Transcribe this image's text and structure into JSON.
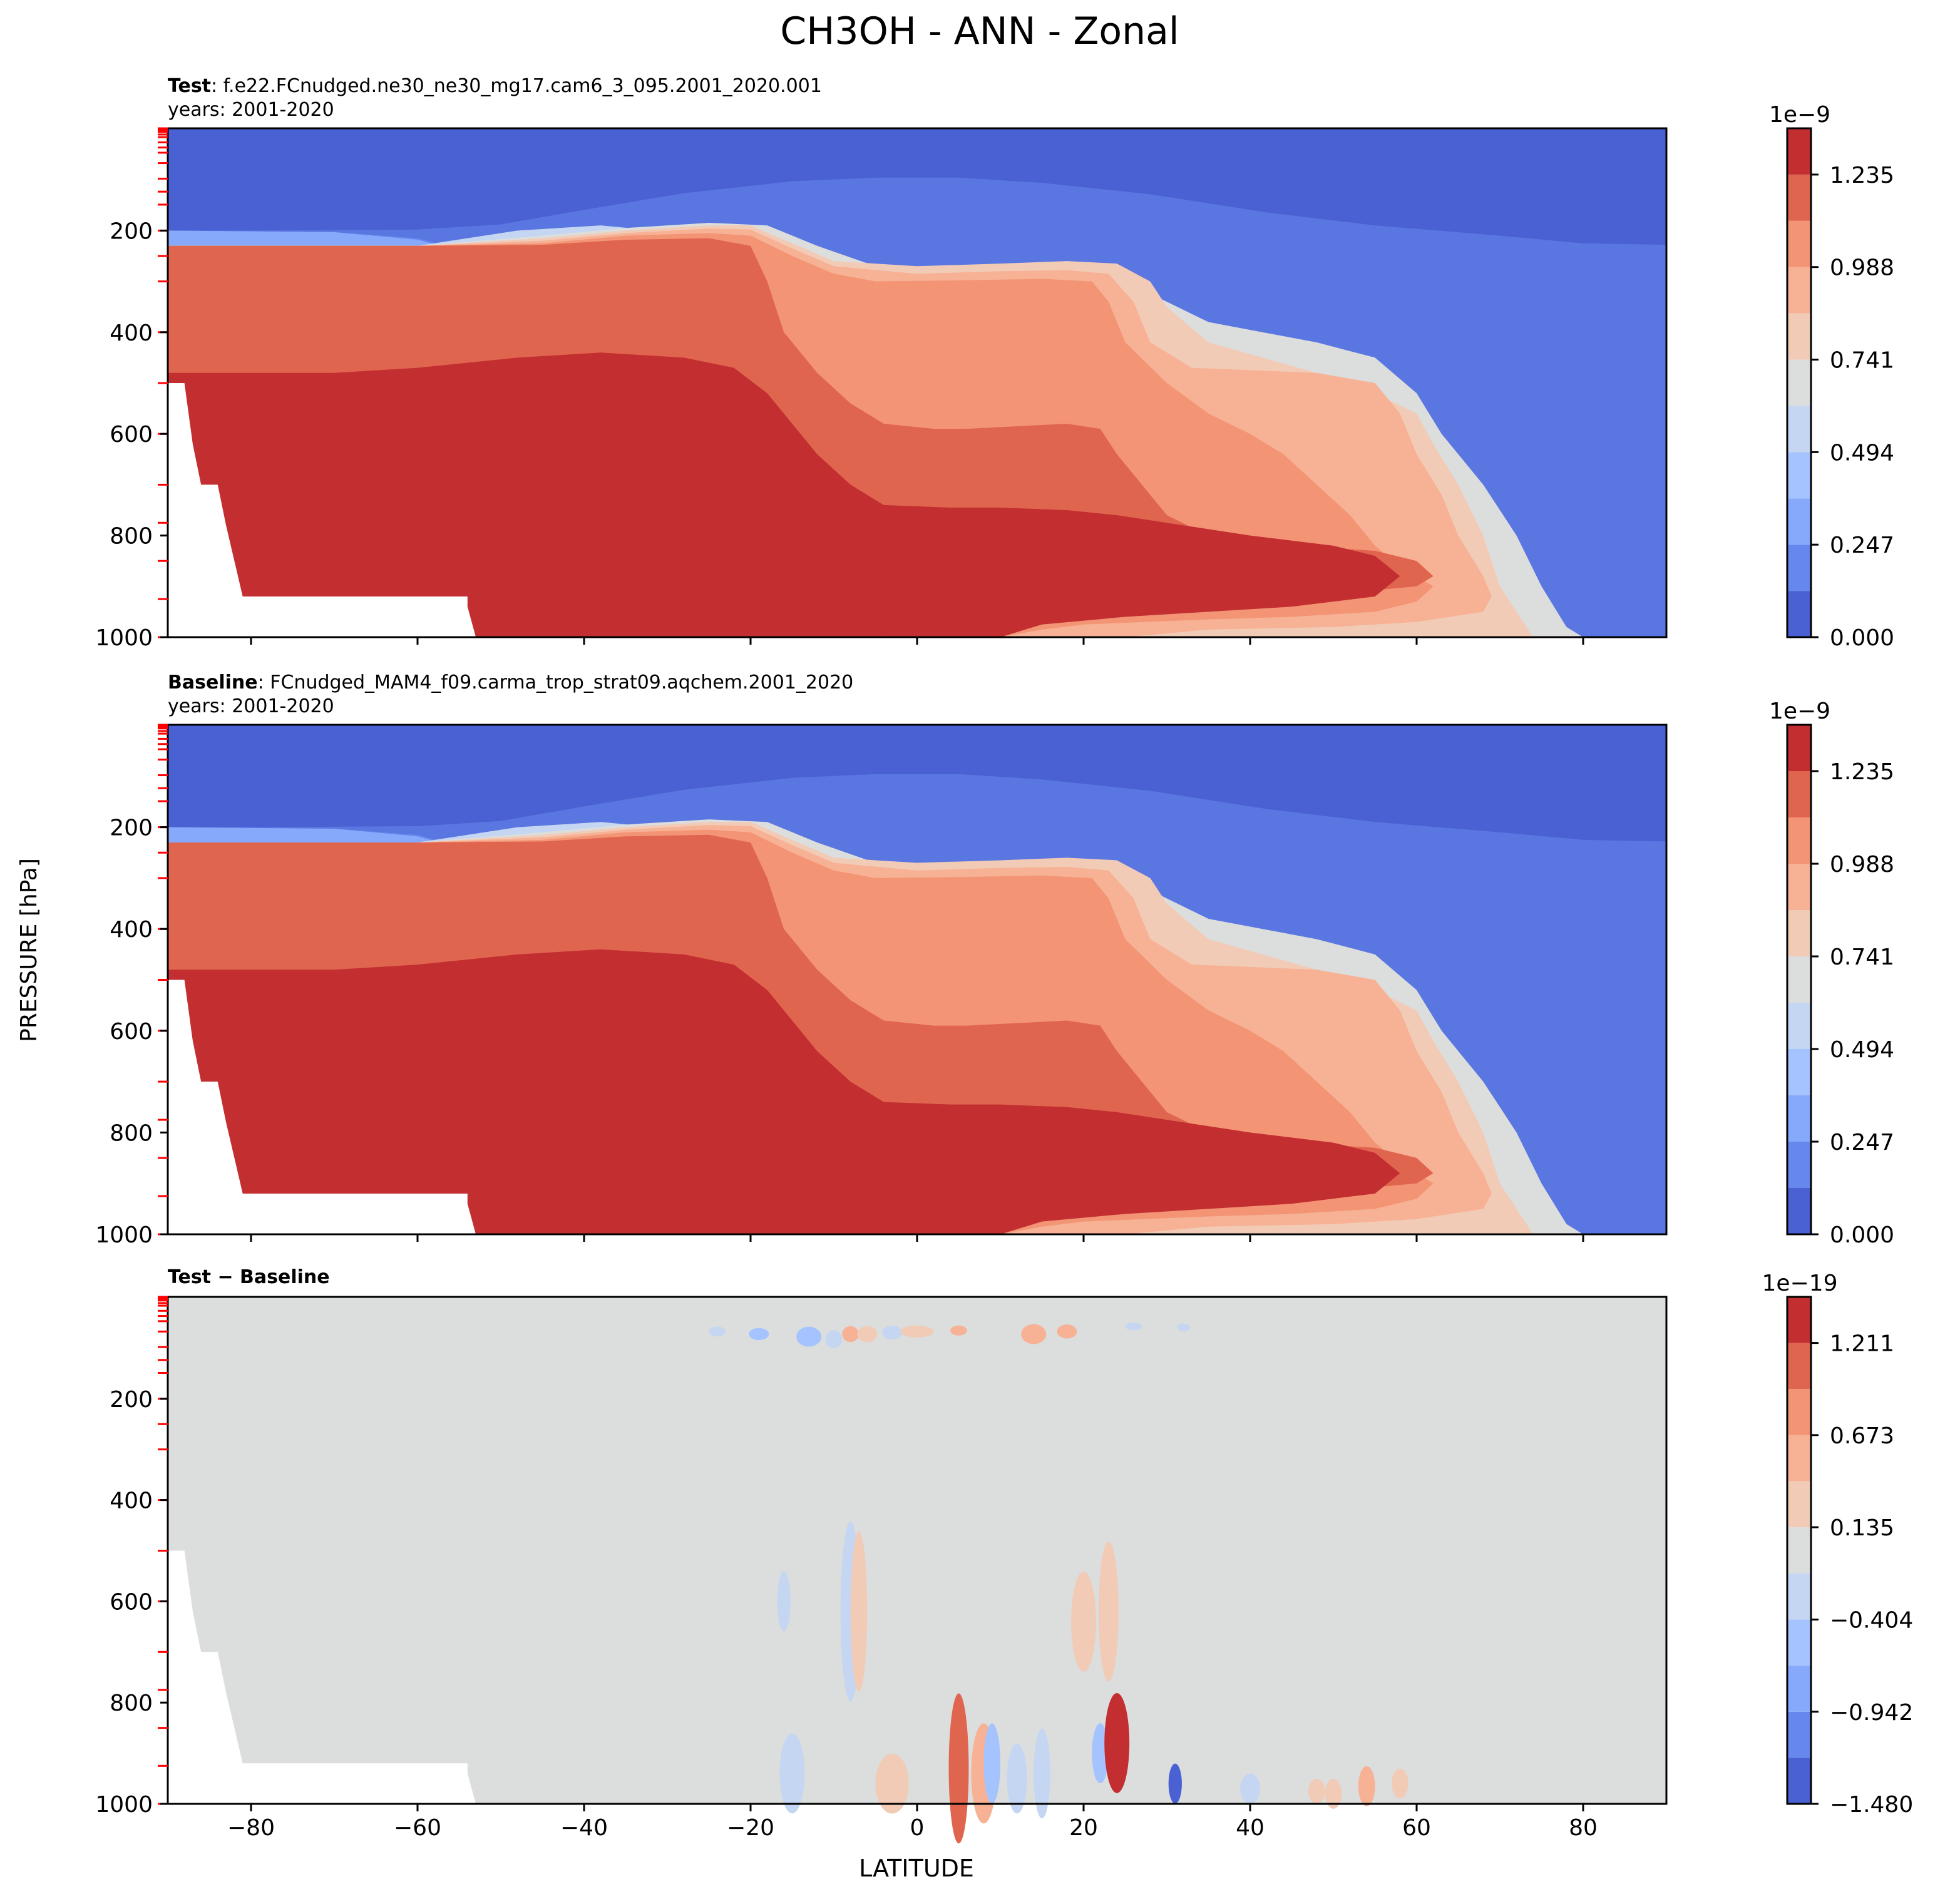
{
  "figure": {
    "title": "CH3OH - ANN - Zonal",
    "ylabel": "PRESSURE [hPa]",
    "xlabel": "LATITUDE"
  },
  "chart_data": [
    {
      "type": "contour",
      "panel": "test",
      "title_bold": "Test",
      "title_rest": ": f.e22.FCnudged.ne30_ne30_mg17.cam6_3_095.2001_2020.001",
      "subtitle": "years: 2001-2020",
      "xlim": [
        -90,
        90
      ],
      "ylim": [
        1000,
        0
      ],
      "x_ticks": [
        -80,
        -60,
        -40,
        -20,
        0,
        20,
        40,
        60,
        80
      ],
      "x_tick_labels": [],
      "y_ticks": [
        200,
        400,
        600,
        800,
        1000
      ],
      "y_tick_labels": [
        "200",
        "400",
        "600",
        "800",
        "1000"
      ],
      "colorbar": {
        "exponent_label": "1e−9",
        "levels": [
          0.0,
          0.1235,
          0.247,
          0.3705,
          0.494,
          0.6175,
          0.741,
          0.8645,
          0.988,
          1.1115,
          1.235,
          1.3585
        ],
        "tick_values": [
          0.0,
          0.247,
          0.494,
          0.741,
          0.988,
          1.235
        ],
        "tick_labels": [
          "0.000",
          "0.247",
          "0.494",
          "0.741",
          "0.988",
          "1.235"
        ]
      }
    },
    {
      "type": "contour",
      "panel": "baseline",
      "title_bold": "Baseline",
      "title_rest": ": FCnudged_MAM4_f09.carma_trop_strat09.aqchem.2001_2020",
      "subtitle": "years: 2001-2020",
      "xlim": [
        -90,
        90
      ],
      "ylim": [
        1000,
        0
      ],
      "x_ticks": [
        -80,
        -60,
        -40,
        -20,
        0,
        20,
        40,
        60,
        80
      ],
      "x_tick_labels": [],
      "y_ticks": [
        200,
        400,
        600,
        800,
        1000
      ],
      "y_tick_labels": [
        "200",
        "400",
        "600",
        "800",
        "1000"
      ],
      "colorbar": {
        "exponent_label": "1e−9",
        "levels": [
          0.0,
          0.1235,
          0.247,
          0.3705,
          0.494,
          0.6175,
          0.741,
          0.8645,
          0.988,
          1.1115,
          1.235,
          1.3585
        ],
        "tick_values": [
          0.0,
          0.247,
          0.494,
          0.741,
          0.988,
          1.235
        ],
        "tick_labels": [
          "0.000",
          "0.247",
          "0.494",
          "0.741",
          "0.988",
          "1.235"
        ]
      }
    },
    {
      "type": "contour",
      "panel": "difference",
      "title_bold": "Test − Baseline",
      "title_rest": "",
      "subtitle": "",
      "xlim": [
        -90,
        90
      ],
      "ylim": [
        1000,
        0
      ],
      "x_ticks": [
        -80,
        -60,
        -40,
        -20,
        0,
        20,
        40,
        60,
        80
      ],
      "x_tick_labels": [
        "−80",
        "−60",
        "−40",
        "−20",
        "0",
        "20",
        "40",
        "60",
        "80"
      ],
      "y_ticks": [
        200,
        400,
        600,
        800,
        1000
      ],
      "y_tick_labels": [
        "200",
        "400",
        "600",
        "800",
        "1000"
      ],
      "colorbar": {
        "exponent_label": "1e−19",
        "levels": [
          -1.48,
          -1.211,
          -0.942,
          -0.673,
          -0.404,
          -0.135,
          0.135,
          0.404,
          0.673,
          0.942,
          1.211,
          1.48
        ],
        "tick_values": [
          -1.48,
          -0.942,
          -0.404,
          0.135,
          0.673,
          1.211
        ],
        "tick_labels": [
          "−1.480",
          "−0.942",
          "−0.404",
          "0.135",
          "0.673",
          "1.211"
        ]
      }
    }
  ],
  "colors": {
    "seq_fill": [
      "#4961d2",
      "#6687ed",
      "#86a9fc",
      "#a5c3fe",
      "#c5d6f2",
      "#dcdddd",
      "#f2cbb7",
      "#f7b194",
      "#f39475",
      "#e0654f",
      "#c32e31"
    ],
    "seq_bands": [
      "#4961d2",
      "#5772df",
      "#6687ed",
      "#7597f6",
      "#86a9fc",
      "#96b7ff",
      "#a5c3fe",
      "#b5cdfa",
      "#c5d6f2",
      "#d1dae9",
      "#dcdddd"
    ],
    "diff_bands": [
      "#4961d2",
      "#6687ed",
      "#86a9fc",
      "#a5c3fe",
      "#c5d6f2",
      "#dcdddd",
      "#f2cbb7",
      "#f7b194",
      "#f39475",
      "#e0654f",
      "#c32e31"
    ],
    "diff_background": "#dcdddd",
    "level_marker": "#ff0000"
  }
}
